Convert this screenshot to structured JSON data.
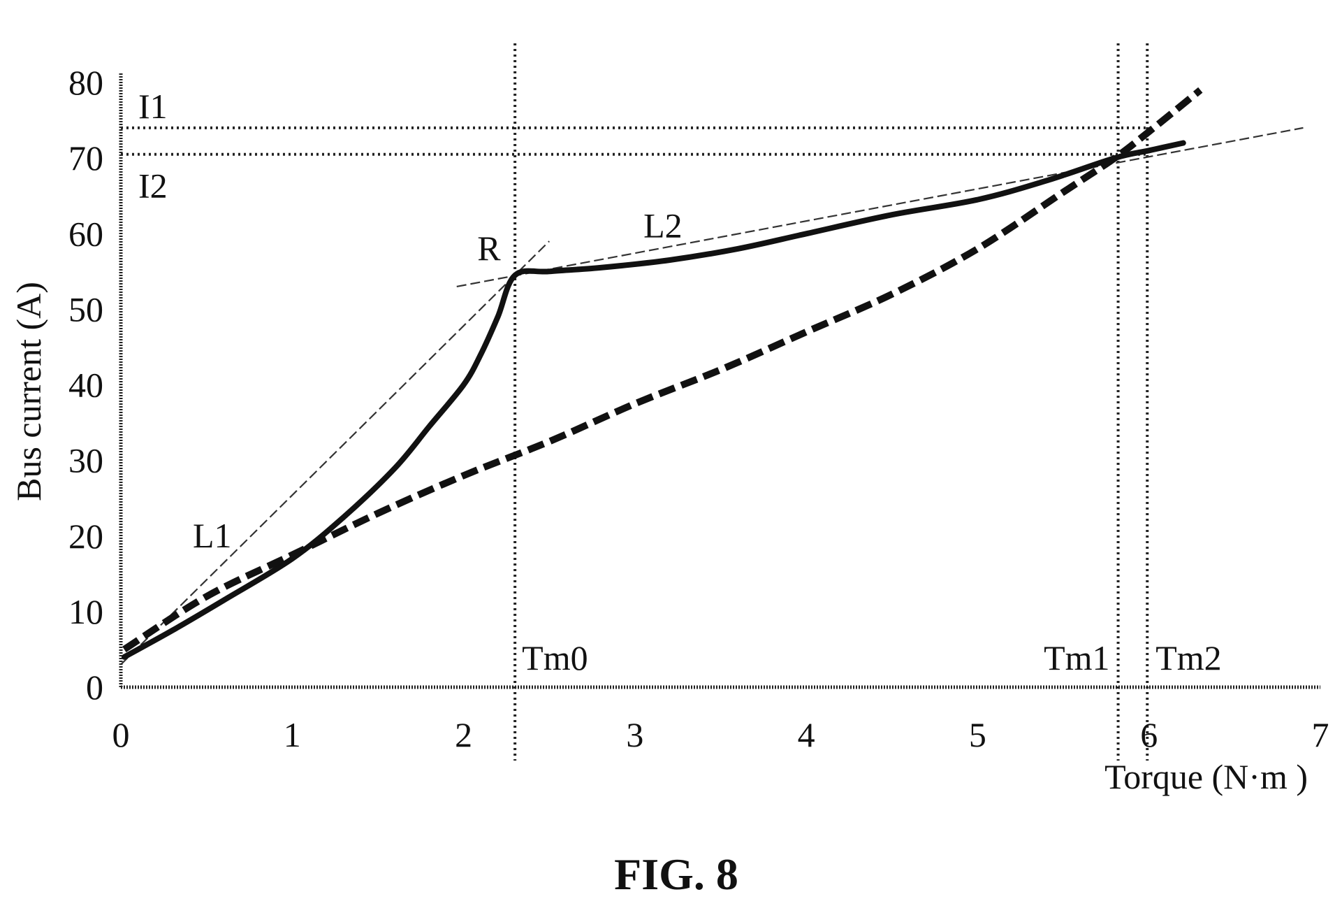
{
  "chart_data": {
    "type": "line",
    "title": "",
    "xlabel": "Torque (N·m )",
    "ylabel": "Bus current (A)",
    "xlim": [
      0,
      7
    ],
    "ylim": [
      0,
      80
    ],
    "x_ticks": [
      "0",
      "1",
      "2",
      "3",
      "4",
      "5",
      "6",
      "7"
    ],
    "y_ticks": [
      "0",
      "10",
      "20",
      "30",
      "40",
      "50",
      "60",
      "70",
      "80"
    ],
    "grid": false,
    "legend": "none",
    "series": [
      {
        "style": "solid",
        "x": [
          0.02,
          0.3,
          0.6,
          1.0,
          1.3,
          1.6,
          1.8,
          2.0,
          2.1,
          2.2,
          2.3,
          2.5,
          2.8,
          3.2,
          3.6,
          4.0,
          4.5,
          5.0,
          5.4,
          5.8,
          6.0,
          6.2
        ],
        "y": [
          4,
          7.5,
          11.5,
          17,
          22.5,
          29,
          34.5,
          40,
          44,
          49,
          54.5,
          55,
          55.5,
          56.5,
          58,
          60,
          62.5,
          64.5,
          67,
          70,
          71,
          72
        ]
      },
      {
        "style": "dashed",
        "x": [
          0.02,
          0.5,
          1.0,
          1.5,
          2.0,
          2.5,
          3.0,
          3.5,
          4.0,
          4.5,
          5.0,
          5.5,
          5.8,
          6.0,
          6.3
        ],
        "y": [
          5,
          12,
          17.5,
          23,
          28,
          32.5,
          37.5,
          42,
          47,
          52,
          58,
          65.5,
          70,
          73.5,
          79
        ]
      }
    ],
    "tangent_lines": [
      {
        "label": "L1",
        "x": [
          0.0,
          2.5
        ],
        "y": [
          3,
          59
        ]
      },
      {
        "label": "L2",
        "x": [
          1.96,
          6.9
        ],
        "y": [
          53,
          74
        ]
      }
    ],
    "guide_lines": {
      "vertical": [
        {
          "label": "Tm0",
          "x": 2.3
        },
        {
          "label": "Tm1",
          "x": 5.82
        },
        {
          "label": "Tm2",
          "x": 5.99
        }
      ],
      "horizontal": [
        {
          "label": "I1",
          "y": 74
        },
        {
          "label": "I2",
          "y": 70.5
        }
      ]
    },
    "point_labels": [
      {
        "label": "R",
        "x": 2.08,
        "y": 56.5
      },
      {
        "label": "L1",
        "x": 0.42,
        "y": 18.5
      },
      {
        "label": "L2",
        "x": 3.05,
        "y": 59.5
      }
    ]
  },
  "caption": "FIG. 8"
}
